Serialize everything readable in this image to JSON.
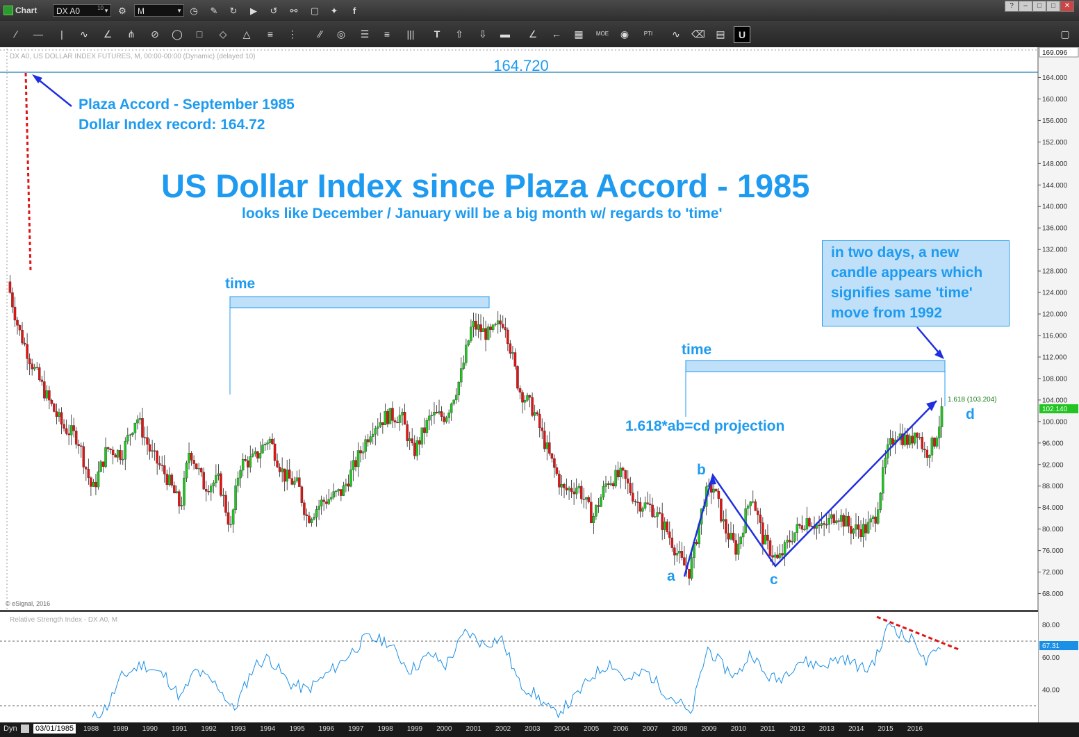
{
  "window": {
    "title": "Chart",
    "symbol": "DX A0",
    "symbol_badge": "10",
    "interval": "M",
    "buttons": [
      "?",
      "–",
      "□",
      "✕"
    ]
  },
  "colors": {
    "annotation": "#1e9bf0",
    "up_candle": "#22c322",
    "down_candle": "#e01414",
    "trend_line": "#1f2fe0",
    "red_dotted": "#e01414",
    "time_box_fill": "#bfe0f8",
    "time_box_border": "#1e9bf0",
    "rsi_line": "#1a8fe6",
    "price_marker": "#22c322",
    "rsi_marker": "#1a8fe6"
  },
  "price_panel": {
    "header": "DX A0, US DOLLAR INDEX FUTURES, M, 00:00-00:00 (Dynamic) (delayed 10)",
    "copyright": "© eSignal, 2016",
    "top_price_label": "169.096",
    "resistance_value": "164.720",
    "current_price": "102.140",
    "fib_label": "1.618 (103.204)",
    "y_ticks": [
      "164.000",
      "160.000",
      "156.000",
      "152.000",
      "148.000",
      "144.000",
      "140.000",
      "136.000",
      "132.000",
      "128.000",
      "124.000",
      "120.000",
      "116.000",
      "112.000",
      "108.000",
      "104.000",
      "100.000",
      "96.000",
      "92.000",
      "88.000",
      "84.000",
      "80.000",
      "76.000",
      "72.000",
      "68.000"
    ]
  },
  "rsi_panel": {
    "header": "Relative Strength Index - DX A0, M",
    "current": "67.31",
    "y_ticks": [
      "80.00",
      "60.00",
      "40.00"
    ]
  },
  "x_axis": {
    "start_date": "03/01/1985",
    "years": [
      "1988",
      "1989",
      "1990",
      "1991",
      "1992",
      "1993",
      "1994",
      "1995",
      "1996",
      "1997",
      "1998",
      "1999",
      "2000",
      "2001",
      "2002",
      "2003",
      "2004",
      "2005",
      "2006",
      "2007",
      "2008",
      "2009",
      "2010",
      "2011",
      "2012",
      "2013",
      "2014",
      "2015",
      "2016"
    ]
  },
  "bottom_bar": {
    "label": "Dyn"
  },
  "annotations": {
    "plaza_line1": "Plaza Accord - September 1985",
    "plaza_line2": "Dollar Index record: 164.72",
    "main_title": "US Dollar Index since Plaza Accord - 1985",
    "subtitle": "looks like December / January will be a big month w/ regards to 'time'",
    "time_left": "time",
    "time_right": "time",
    "projection": "1.618*ab=cd projection",
    "callout": [
      "in two days, a new",
      "candle appears which",
      "signifies same 'time'",
      "move from 1992"
    ],
    "point_a": "a",
    "point_b": "b",
    "point_c": "c",
    "point_d": "d"
  },
  "chart_data": {
    "type": "candlestick",
    "interval": "monthly",
    "price_ylim": [
      66,
      169.1
    ],
    "rsi_ylim": [
      20,
      88
    ],
    "key_points": [
      {
        "label": "Plaza Accord high",
        "year": 1985.1,
        "value": 164.72
      },
      {
        "label": "a",
        "year": 2008.3,
        "value": 71.0
      },
      {
        "label": "b",
        "year": 2009.1,
        "value": 89.6
      },
      {
        "label": "c",
        "year": 2011.3,
        "value": 73.0
      },
      {
        "label": "d (1.618 projection)",
        "year": 2016.8,
        "value": 103.204
      }
    ],
    "close_path": [
      [
        1985.2,
        124
      ],
      [
        1985.5,
        117
      ],
      [
        1986.0,
        110
      ],
      [
        1986.5,
        104
      ],
      [
        1987.0,
        99
      ],
      [
        1987.5,
        97
      ],
      [
        1988.0,
        87
      ],
      [
        1988.5,
        95
      ],
      [
        1989.0,
        94
      ],
      [
        1989.5,
        101
      ],
      [
        1990.0,
        94
      ],
      [
        1990.5,
        90
      ],
      [
        1991.0,
        84
      ],
      [
        1991.3,
        95
      ],
      [
        1991.8,
        88
      ],
      [
        1992.3,
        89
      ],
      [
        1992.7,
        80
      ],
      [
        1993.0,
        92
      ],
      [
        1993.5,
        93
      ],
      [
        1994.0,
        97
      ],
      [
        1994.5,
        90
      ],
      [
        1995.0,
        88
      ],
      [
        1995.3,
        82
      ],
      [
        1995.8,
        85
      ],
      [
        1996.5,
        87
      ],
      [
        1997.0,
        93
      ],
      [
        1997.5,
        99
      ],
      [
        1998.0,
        101
      ],
      [
        1998.5,
        101
      ],
      [
        1998.9,
        94
      ],
      [
        1999.5,
        101
      ],
      [
        2000.0,
        101
      ],
      [
        2000.5,
        108
      ],
      [
        2000.9,
        118
      ],
      [
        2001.5,
        116
      ],
      [
        2002.0,
        119
      ],
      [
        2002.5,
        106
      ],
      [
        2003.0,
        102
      ],
      [
        2003.5,
        94
      ],
      [
        2004.0,
        87
      ],
      [
        2004.5,
        88
      ],
      [
        2005.0,
        82
      ],
      [
        2005.5,
        89
      ],
      [
        2006.0,
        90
      ],
      [
        2006.5,
        85
      ],
      [
        2007.0,
        84
      ],
      [
        2007.5,
        80
      ],
      [
        2008.0,
        74
      ],
      [
        2008.3,
        72
      ],
      [
        2008.8,
        86
      ],
      [
        2009.1,
        88
      ],
      [
        2009.5,
        80
      ],
      [
        2009.9,
        76
      ],
      [
        2010.4,
        87
      ],
      [
        2010.8,
        78
      ],
      [
        2011.3,
        74
      ],
      [
        2011.8,
        79
      ],
      [
        2012.3,
        82
      ],
      [
        2012.8,
        80
      ],
      [
        2013.3,
        83
      ],
      [
        2013.8,
        80
      ],
      [
        2014.3,
        80
      ],
      [
        2014.6,
        82
      ],
      [
        2015.0,
        94
      ],
      [
        2015.3,
        98
      ],
      [
        2015.8,
        96
      ],
      [
        2016.0,
        99
      ],
      [
        2016.3,
        94
      ],
      [
        2016.6,
        96
      ],
      [
        2016.9,
        102
      ]
    ],
    "rsi_path": [
      [
        1988.0,
        22
      ],
      [
        1988.5,
        30
      ],
      [
        1989.0,
        48
      ],
      [
        1989.7,
        56
      ],
      [
        1990.5,
        48
      ],
      [
        1991.0,
        35
      ],
      [
        1991.5,
        52
      ],
      [
        1992.3,
        42
      ],
      [
        1992.8,
        27
      ],
      [
        1993.5,
        55
      ],
      [
        1994.0,
        60
      ],
      [
        1994.7,
        44
      ],
      [
        1995.3,
        40
      ],
      [
        1996.0,
        50
      ],
      [
        1996.5,
        58
      ],
      [
        1997.3,
        72
      ],
      [
        1998.0,
        70
      ],
      [
        1998.8,
        52
      ],
      [
        1999.5,
        62
      ],
      [
        2000.0,
        55
      ],
      [
        2000.7,
        76
      ],
      [
        2001.3,
        68
      ],
      [
        2001.9,
        72
      ],
      [
        2002.5,
        44
      ],
      [
        2003.0,
        38
      ],
      [
        2003.7,
        25
      ],
      [
        2004.3,
        33
      ],
      [
        2005.0,
        49
      ],
      [
        2005.6,
        57
      ],
      [
        2006.2,
        45
      ],
      [
        2006.8,
        52
      ],
      [
        2007.5,
        38
      ],
      [
        2008.1,
        30
      ],
      [
        2008.3,
        22
      ],
      [
        2008.9,
        66
      ],
      [
        2009.4,
        55
      ],
      [
        2009.9,
        48
      ],
      [
        2010.4,
        64
      ],
      [
        2010.8,
        50
      ],
      [
        2011.3,
        46
      ],
      [
        2012.0,
        58
      ],
      [
        2012.8,
        55
      ],
      [
        2013.5,
        60
      ],
      [
        2014.3,
        52
      ],
      [
        2014.7,
        62
      ],
      [
        2015.1,
        82
      ],
      [
        2015.6,
        72
      ],
      [
        2016.0,
        70
      ],
      [
        2016.3,
        56
      ],
      [
        2016.9,
        67.31
      ]
    ]
  }
}
